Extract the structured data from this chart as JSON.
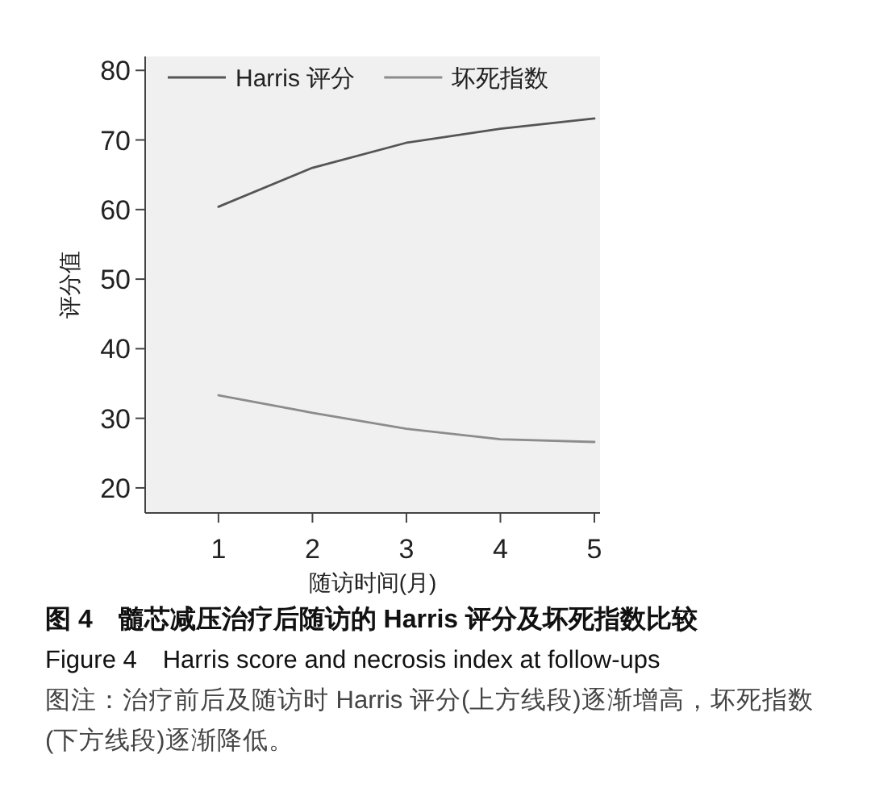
{
  "chart_data": {
    "type": "line",
    "title": "图 4　髓芯减压治疗后随访的 Harris 评分及坏死指数比较",
    "subtitle": "Figure 4　Harris score and necrosis index at follow-ups",
    "annotations": [
      "图注：治疗前后及随访时 Harris 评分(上方线段)逐渐增高，坏死指数(下方线段)逐渐降低。"
    ],
    "xlabel": "随访时间(月)",
    "ylabel": "评分值",
    "x": [
      1,
      2,
      3,
      4,
      5
    ],
    "xlim": [
      0.22,
      5.06
    ],
    "xticks": [
      1,
      2,
      3,
      4,
      5
    ],
    "ylim": [
      16.4,
      82
    ],
    "yticks": [
      20,
      30,
      40,
      50,
      60,
      70,
      80
    ],
    "legend": "top left",
    "series": [
      {
        "name": "Harris 评分",
        "color": "#555555",
        "values": [
          60.4,
          66.0,
          69.6,
          71.6,
          73.1
        ]
      },
      {
        "name": "坏死指数",
        "color": "#8c8c8c",
        "values": [
          33.3,
          30.8,
          28.5,
          27.0,
          26.6
        ]
      }
    ]
  }
}
